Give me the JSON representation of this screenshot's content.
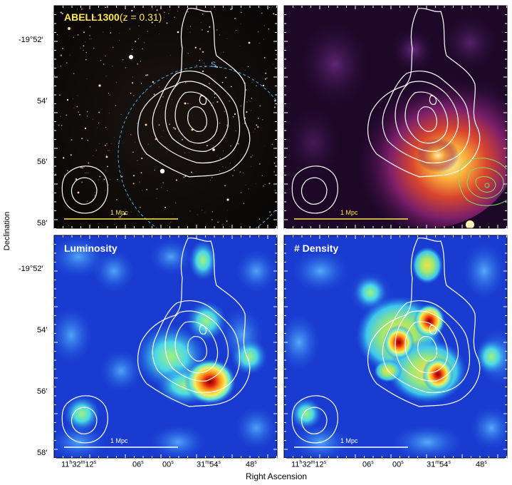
{
  "panels": [
    {
      "id": "optical",
      "title": "ABELL1300",
      "title_suffix": "(z = 0.31)",
      "title_color": "#ffe84a",
      "scale_label": "1 Mpc",
      "scale_color": "#ffe84a"
    },
    {
      "id": "xray",
      "title": "",
      "scale_label": "1 Mpc",
      "scale_color": "#ffe84a"
    },
    {
      "id": "luminosity",
      "title": "Luminosity",
      "title_color": "#ffffff",
      "scale_label": "1 Mpc",
      "scale_color": "#ffffff"
    },
    {
      "id": "density",
      "title": "# Density",
      "title_color": "#ffffff",
      "scale_label": "1 Mpc",
      "scale_color": "#ffffff"
    }
  ],
  "optical_marker": "S",
  "axes": {
    "ylabel": "Declination",
    "xlabel": "Right Ascension",
    "yticks": [
      "-19°52′",
      "54′",
      "56′",
      "58′"
    ],
    "xticks": [
      "11h32m12s",
      "06s",
      "00s",
      "31m54s",
      "48s"
    ]
  },
  "colors": {
    "contour": "#ffffff",
    "green_contour": "#7fe060",
    "dashed_circle": "#4aa8e0"
  }
}
